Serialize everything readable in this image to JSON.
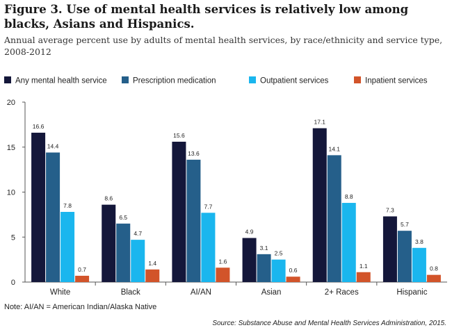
{
  "title": "Figure 3. Use of mental health services is relatively low among blacks, Asians and Hispanics.",
  "subtitle": "Annual average percent use by adults of mental health services, by race/ethnicity and service type, 2008-2012",
  "note": "Note: AI/AN = American Indian/Alaska Native",
  "source": "Source: Substance Abuse and Mental Health Services Administration, 2015.",
  "chart_data": {
    "type": "bar",
    "categories": [
      "White",
      "Black",
      "AI/AN",
      "Asian",
      "2+ Races",
      "Hispanic"
    ],
    "series": [
      {
        "name": "Any mental health service",
        "color": "#14173a",
        "values": [
          16.6,
          8.6,
          15.6,
          4.9,
          17.1,
          7.3
        ]
      },
      {
        "name": "Prescription medication",
        "color": "#255f8a",
        "values": [
          14.4,
          6.5,
          13.6,
          3.1,
          14.1,
          5.7
        ]
      },
      {
        "name": "Outpatient services",
        "color": "#1ab6ee",
        "values": [
          7.8,
          4.7,
          7.7,
          2.5,
          8.8,
          3.8
        ]
      },
      {
        "name": "Inpatient services",
        "color": "#d2542a",
        "values": [
          0.7,
          1.4,
          1.6,
          0.6,
          1.1,
          0.8
        ]
      }
    ],
    "ylim": [
      0,
      20
    ],
    "yticks": [
      0,
      5,
      10,
      15,
      20
    ],
    "xlabel": "",
    "ylabel": "",
    "legend": "top",
    "grid": false
  }
}
